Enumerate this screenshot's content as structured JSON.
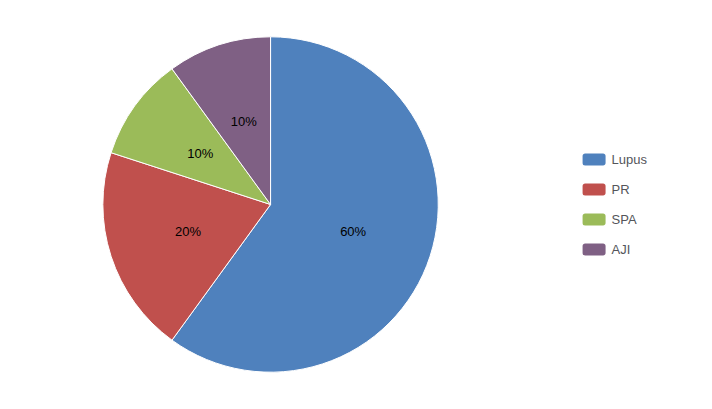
{
  "chart_data": {
    "type": "pie",
    "categories": [
      "Lupus",
      "PR",
      "SPA",
      "AJI"
    ],
    "values": [
      60,
      20,
      10,
      10
    ],
    "value_labels": [
      "60%",
      "20%",
      "10%",
      "10%"
    ],
    "colors": [
      "#4F81BD",
      "#C0504D",
      "#9BBB59",
      "#7F6084"
    ],
    "data_labels": true,
    "legend": "right"
  }
}
